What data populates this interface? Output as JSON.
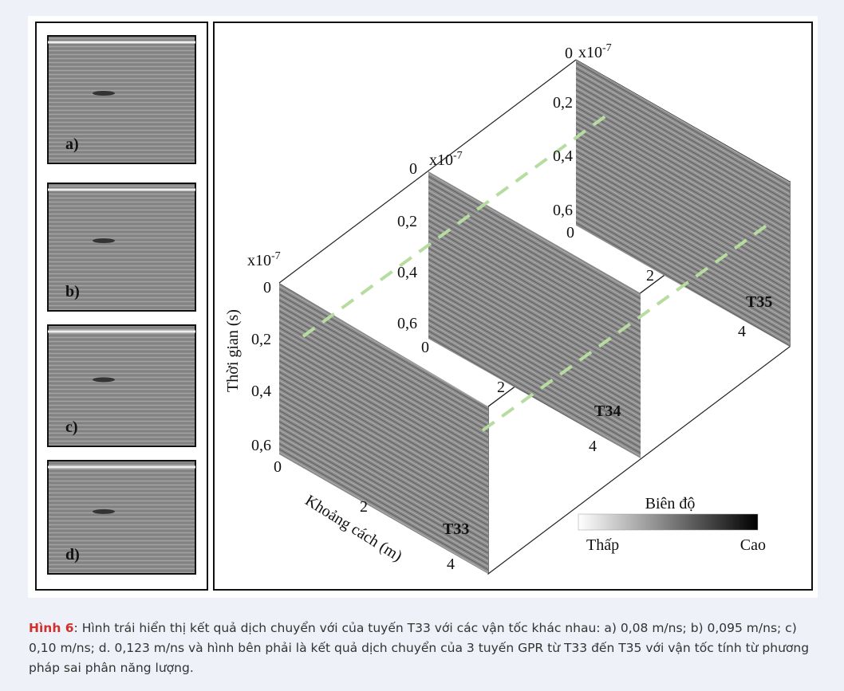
{
  "left_panels": [
    {
      "label": "a)"
    },
    {
      "label": "b)"
    },
    {
      "label": "c)"
    },
    {
      "label": "d)"
    }
  ],
  "right_panel": {
    "profiles": [
      {
        "name": "T33",
        "time_ticks": [
          "0",
          "0,2",
          "0,4",
          "0,6"
        ],
        "exponent": {
          "base": "x10",
          "power": "-7"
        },
        "distance_ticks": [
          "0",
          "2",
          "4"
        ]
      },
      {
        "name": "T34",
        "time_ticks": [
          "0",
          "0,2",
          "0,4",
          "0,6"
        ],
        "exponent": {
          "base": "x10",
          "power": "-7"
        },
        "distance_ticks": [
          "0",
          "2",
          "4"
        ]
      },
      {
        "name": "T35",
        "time_ticks": [
          "0",
          "0,2",
          "0,4",
          "0,6"
        ],
        "exponent": {
          "base": "x10",
          "power": "-7"
        },
        "distance_ticks": [
          "0",
          "2",
          "4"
        ]
      }
    ],
    "y_axis_label": "Thời gian (s)",
    "x_axis_label": "Khoảng cách (m)",
    "colorbar": {
      "title": "Biên độ",
      "low": "Thấp",
      "high": "Cao"
    }
  },
  "caption": {
    "label": "Hình 6",
    "text": ": Hình trái hiển thị kết quả dịch chuyển với của tuyến T33 với các vận tốc khác nhau: a) 0,08 m/ns; b) 0,095 m/ns; c) 0,10 m/ns; d. 0,123 m/ns và hình bên phải là kết quả dịch chuyển của 3 tuyến GPR từ T33 đến T35 với vận tốc tính từ phương pháp sai phân năng lượng."
  }
}
